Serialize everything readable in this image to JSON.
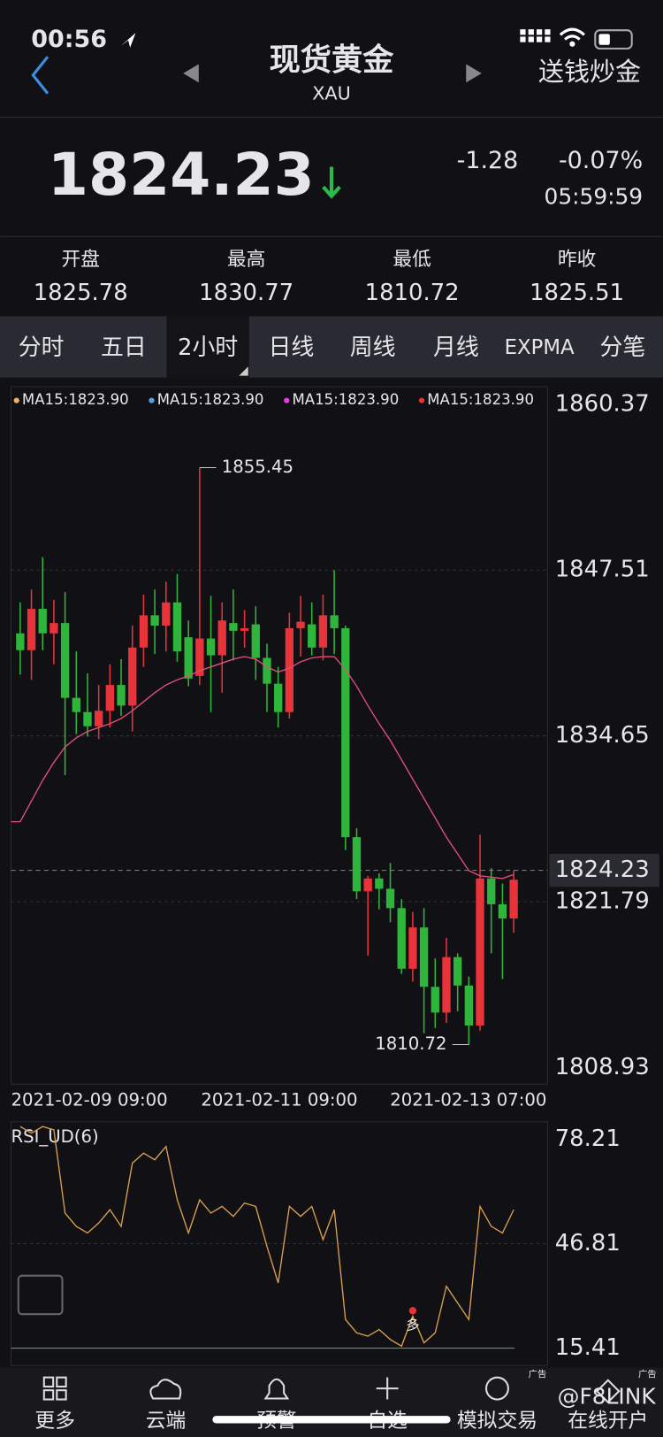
{
  "status_bar": {
    "time": "00:56"
  },
  "header": {
    "title": "现货黄金",
    "symbol": "XAU",
    "promo": "送钱炒金"
  },
  "quote": {
    "price": "1824.23",
    "change": "-1.28",
    "change_pct": "-0.07%",
    "time": "05:59:59"
  },
  "stats": [
    {
      "label": "开盘",
      "value": "1825.78"
    },
    {
      "label": "最高",
      "value": "1830.77"
    },
    {
      "label": "最低",
      "value": "1810.72"
    },
    {
      "label": "昨收",
      "value": "1825.51"
    }
  ],
  "tabs": [
    "分时",
    "五日",
    "2小时",
    "日线",
    "周线",
    "月线",
    "EXPMA",
    "分笔"
  ],
  "selected_tab": 2,
  "chart": {
    "type": "candlestick",
    "ma_legend": [
      {
        "text": "MA15:1823.90",
        "color": "#f0b060"
      },
      {
        "text": "MA15:1823.90",
        "color": "#5aa0e8"
      },
      {
        "text": "MA15:1823.90",
        "color": "#e040e0"
      },
      {
        "text": "MA15:1823.90",
        "color": "#e8333a"
      }
    ],
    "ylim": [
      1808.93,
      1860.37
    ],
    "yticks": [
      1860.37,
      1847.51,
      1834.65,
      1821.79,
      1808.93
    ],
    "current_price": 1824.23,
    "up_color": "#e8333a",
    "down_color": "#2fb53b",
    "ma_color": "#e0507a",
    "candles": [
      {
        "open": 1842.6,
        "high": 1845.0,
        "low": 1839.4,
        "close": 1841.3
      },
      {
        "open": 1841.3,
        "high": 1846.0,
        "low": 1839.0,
        "close": 1844.5
      },
      {
        "open": 1844.5,
        "high": 1848.5,
        "low": 1841.3,
        "close": 1842.6
      },
      {
        "open": 1842.6,
        "high": 1845.2,
        "low": 1840.2,
        "close": 1843.4
      },
      {
        "open": 1843.4,
        "high": 1845.8,
        "low": 1831.6,
        "close": 1837.6
      },
      {
        "open": 1837.6,
        "high": 1841.2,
        "low": 1834.8,
        "close": 1836.5
      },
      {
        "open": 1836.5,
        "high": 1839.5,
        "low": 1834.6,
        "close": 1835.4
      },
      {
        "open": 1835.4,
        "high": 1838.6,
        "low": 1834.4,
        "close": 1836.6
      },
      {
        "open": 1836.6,
        "high": 1840.2,
        "low": 1835.3,
        "close": 1838.6
      },
      {
        "open": 1838.6,
        "high": 1840.6,
        "low": 1836.2,
        "close": 1837.0
      },
      {
        "open": 1837.0,
        "high": 1843.2,
        "low": 1835.0,
        "close": 1841.5
      },
      {
        "open": 1841.5,
        "high": 1845.6,
        "low": 1840.0,
        "close": 1844.0
      },
      {
        "open": 1844.0,
        "high": 1846.0,
        "low": 1841.0,
        "close": 1843.2
      },
      {
        "open": 1843.2,
        "high": 1846.6,
        "low": 1841.2,
        "close": 1845.0
      },
      {
        "open": 1845.0,
        "high": 1847.2,
        "low": 1840.4,
        "close": 1841.2
      },
      {
        "open": 1842.3,
        "high": 1843.6,
        "low": 1838.5,
        "close": 1839.1
      },
      {
        "open": 1839.3,
        "high": 1855.45,
        "low": 1838.6,
        "close": 1842.2
      },
      {
        "open": 1842.2,
        "high": 1845.5,
        "low": 1836.5,
        "close": 1840.9
      },
      {
        "open": 1840.9,
        "high": 1845.0,
        "low": 1838.0,
        "close": 1843.6
      },
      {
        "open": 1843.4,
        "high": 1846.0,
        "low": 1840.5,
        "close": 1842.8
      },
      {
        "open": 1842.8,
        "high": 1844.4,
        "low": 1841.5,
        "close": 1843.0
      },
      {
        "open": 1843.3,
        "high": 1844.7,
        "low": 1839.0,
        "close": 1840.7
      },
      {
        "open": 1840.7,
        "high": 1841.8,
        "low": 1836.5,
        "close": 1838.7
      },
      {
        "open": 1838.7,
        "high": 1840.0,
        "low": 1835.3,
        "close": 1836.5
      },
      {
        "open": 1836.5,
        "high": 1844.2,
        "low": 1836.0,
        "close": 1843.0
      },
      {
        "open": 1843.0,
        "high": 1845.5,
        "low": 1840.8,
        "close": 1843.5
      },
      {
        "open": 1843.3,
        "high": 1845.0,
        "low": 1840.9,
        "close": 1841.5
      },
      {
        "open": 1841.5,
        "high": 1845.6,
        "low": 1840.5,
        "close": 1844.0
      },
      {
        "open": 1844.0,
        "high": 1847.5,
        "low": 1841.0,
        "close": 1843.0
      },
      {
        "open": 1843.0,
        "high": 1843.2,
        "low": 1825.8,
        "close": 1826.8
      },
      {
        "open": 1826.8,
        "high": 1827.5,
        "low": 1822.0,
        "close": 1822.6
      },
      {
        "open": 1822.6,
        "high": 1823.8,
        "low": 1817.6,
        "close": 1823.6
      },
      {
        "open": 1823.6,
        "high": 1824.0,
        "low": 1821.2,
        "close": 1822.8
      },
      {
        "open": 1822.8,
        "high": 1824.8,
        "low": 1820.2,
        "close": 1821.3
      },
      {
        "open": 1821.3,
        "high": 1822.0,
        "low": 1816.2,
        "close": 1816.6
      },
      {
        "open": 1816.6,
        "high": 1821.0,
        "low": 1815.6,
        "close": 1819.8
      },
      {
        "open": 1819.8,
        "high": 1821.3,
        "low": 1811.6,
        "close": 1815.2
      },
      {
        "open": 1815.2,
        "high": 1817.4,
        "low": 1812.0,
        "close": 1813.2
      },
      {
        "open": 1813.2,
        "high": 1819.0,
        "low": 1812.4,
        "close": 1817.5
      },
      {
        "open": 1817.5,
        "high": 1817.8,
        "low": 1813.3,
        "close": 1815.3
      },
      {
        "open": 1815.3,
        "high": 1816.0,
        "low": 1810.72,
        "close": 1812.2
      },
      {
        "open": 1812.2,
        "high": 1827.0,
        "low": 1811.8,
        "close": 1823.6
      },
      {
        "open": 1823.6,
        "high": 1824.4,
        "low": 1817.8,
        "close": 1821.6
      },
      {
        "open": 1821.6,
        "high": 1823.2,
        "low": 1815.8,
        "close": 1820.5
      },
      {
        "open": 1820.5,
        "high": 1824.2,
        "low": 1819.4,
        "close": 1823.5
      }
    ],
    "ma15": [
      1828.0,
      1829.6,
      1831.2,
      1832.6,
      1833.8,
      1834.5,
      1835.0,
      1835.3,
      1835.6,
      1836.0,
      1836.6,
      1837.3,
      1838.0,
      1838.6,
      1839.0,
      1839.3,
      1839.7,
      1840.0,
      1840.3,
      1840.6,
      1840.8,
      1840.6,
      1840.0,
      1839.6,
      1839.9,
      1840.4,
      1840.7,
      1840.8,
      1840.8,
      1839.8,
      1838.5,
      1837.0,
      1835.6,
      1834.3,
      1832.8,
      1831.3,
      1829.8,
      1828.3,
      1826.8,
      1825.5,
      1824.2,
      1823.8,
      1823.7,
      1823.6,
      1823.9
    ],
    "x_labels": [
      "2021-02-09 09:00",
      "2021-02-11 09:00",
      "2021-02-13 07:00"
    ],
    "rsi": {
      "title": "RSI_UD(6)",
      "ylim": [
        10.18,
        83.44
      ],
      "yticks": [
        78.21,
        46.81,
        15.41
      ],
      "color": "#d9a050",
      "signal": "多",
      "signal_index": 35,
      "values": [
        82,
        80,
        82,
        81,
        56,
        52,
        50,
        53,
        57,
        52,
        71,
        74,
        72,
        76,
        60,
        50,
        60,
        56,
        58,
        55,
        59,
        58,
        46,
        35,
        58,
        55,
        58,
        48,
        57,
        24,
        20,
        19,
        21,
        18,
        16,
        25,
        17,
        20,
        34,
        29,
        24,
        58,
        52,
        50,
        57
      ]
    }
  },
  "nav": [
    "更多",
    "云端",
    "预警",
    "自选",
    "模拟交易",
    "在线开户"
  ],
  "ads": [
    "广告",
    "广告"
  ],
  "watermark": "@F8LINK"
}
